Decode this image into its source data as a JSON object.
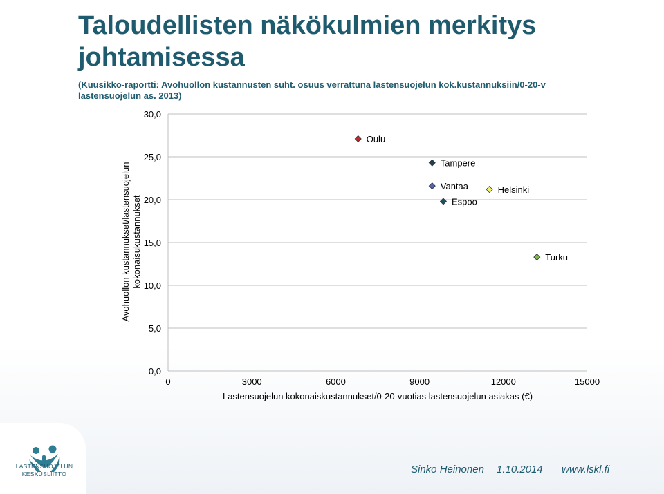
{
  "slide": {
    "title": "Taloudellisten näkökulmien merkitys johtamisessa",
    "subtitle": "(Kuusikko-raportti: Avohuollon kustannusten suht. osuus verrattuna lastensuojelun kok.kustannuksiin/0-20-v lastensuojelun as. 2013)"
  },
  "chart_data": {
    "type": "scatter",
    "xlabel": "Lastensuojelun kokonaiskustannukset/0-20-vuotias lastensuojelun asiakas (€)",
    "ylabel_lines": [
      "Avohuollon kustannukset/lastensuojelun",
      "kokonaisukustannukset"
    ],
    "xlim": [
      0,
      15000
    ],
    "ylim": [
      0,
      30
    ],
    "x_ticks": [
      0,
      3000,
      6000,
      9000,
      12000,
      15000
    ],
    "y_ticks": [
      0,
      5,
      10,
      15,
      20,
      25,
      30
    ],
    "y_tick_labels": [
      "0,0",
      "5,0",
      "10,0",
      "15,0",
      "20,0",
      "25,0",
      "30,0"
    ],
    "grid": "horizontal",
    "points": [
      {
        "label": "Oulu",
        "x": 6800,
        "y": 27.1,
        "color": "#c0262c"
      },
      {
        "label": "Tampere",
        "x": 9450,
        "y": 24.3,
        "color": "#1f3f52"
      },
      {
        "label": "Vantaa",
        "x": 9450,
        "y": 21.6,
        "color": "#5565a8"
      },
      {
        "label": "Espoo",
        "x": 9850,
        "y": 19.8,
        "color": "#1f4f60"
      },
      {
        "label": "Helsinki",
        "x": 11500,
        "y": 21.2,
        "color": "#eef36a"
      },
      {
        "label": "Turku",
        "x": 13200,
        "y": 13.3,
        "color": "#7dba4a"
      }
    ]
  },
  "footer": {
    "logo_text_line1": "LASTENSUOJELUN",
    "logo_text_line2": "KESKUSLIITTO",
    "author": "Sinko Heinonen",
    "date": "1.10.2014",
    "website": "www.lskl.fi"
  }
}
